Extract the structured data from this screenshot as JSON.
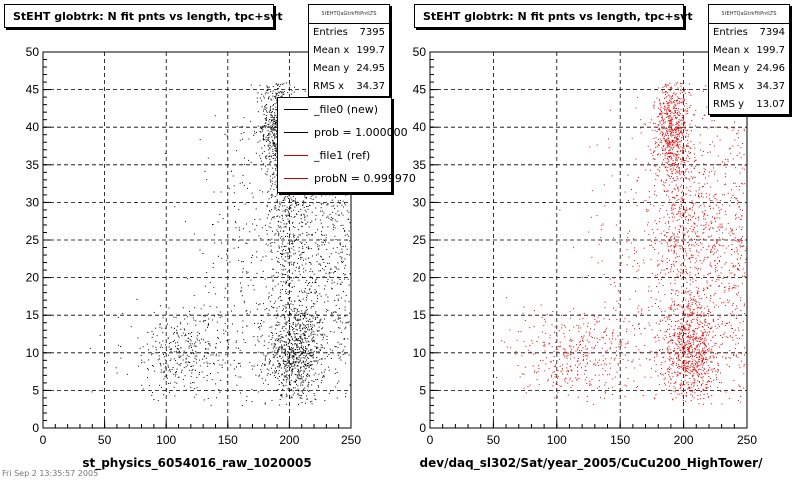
{
  "footer": "Fri Sep  2 13:35:57 2005",
  "panels": [
    {
      "title": "StEHT globtrk: N fit pnts vs length, tpc+svt",
      "xlabel": "st_physics_6054016_raw_1020005",
      "stats": {
        "name": "StEHTQaGtrkFitPntLTS",
        "rows": [
          {
            "label": "Entries",
            "value": "7395"
          },
          {
            "label": "Mean x",
            "value": "199.7"
          },
          {
            "label": "Mean y",
            "value": "24.95"
          },
          {
            "label": "RMS x",
            "value": "34.37"
          }
        ]
      },
      "legend": [
        {
          "label": "_file0 (new)",
          "color": "#000000"
        },
        {
          "label": "prob = 1.000000",
          "color": "#000000"
        },
        {
          "label": "_file1 (ref)",
          "color": "#cc0000"
        },
        {
          "label": "probN = 0.999970",
          "color": "#cc0000"
        }
      ]
    },
    {
      "title": "StEHT globtrk: N fit pnts vs length, tpc+svt",
      "xlabel": "dev/daq_sl302/Sat/year_2005/CuCu200_HighTower/",
      "stats": {
        "name": "StEHTQaGtrkFitPntLTS",
        "rows": [
          {
            "label": "Entries",
            "value": "7394"
          },
          {
            "label": "Mean x",
            "value": "199.7"
          },
          {
            "label": "Mean y",
            "value": "24.96"
          },
          {
            "label": "RMS x",
            "value": "34.37"
          },
          {
            "label": "RMS y",
            "value": "13.07"
          }
        ]
      }
    }
  ],
  "chart_data": [
    {
      "type": "scatter",
      "title": "StEHT globtrk: N fit pnts vs length, tpc+svt",
      "xlabel": "st_physics_6054016_raw_1020005",
      "ylabel": "",
      "xlim": [
        0,
        250
      ],
      "ylim": [
        0,
        50
      ],
      "xticks": [
        0,
        50,
        100,
        150,
        200,
        250
      ],
      "yticks": [
        0,
        5,
        10,
        15,
        20,
        25,
        30,
        35,
        40,
        45,
        50
      ],
      "grid": true,
      "color": "#000000",
      "entries": 7395,
      "density_clusters": [
        {
          "x": 205,
          "y": 10,
          "sx": 12,
          "sy": 3.5,
          "weight": 0.26
        },
        {
          "x": 190,
          "y": 40,
          "sx": 7,
          "sy": 3.5,
          "weight": 0.2
        },
        {
          "x": 218,
          "y": 25,
          "sx": 15,
          "sy": 9,
          "weight": 0.18
        },
        {
          "x": 195,
          "y": 28,
          "sx": 8,
          "sy": 7,
          "weight": 0.1
        },
        {
          "x": 115,
          "y": 10,
          "sx": 25,
          "sy": 3,
          "weight": 0.12
        },
        {
          "x": 165,
          "y": 20,
          "sx": 22,
          "sy": 10,
          "weight": 0.08
        },
        {
          "x": 242,
          "y": 24,
          "sx": 5,
          "sy": 13,
          "weight": 0.06
        }
      ]
    },
    {
      "type": "scatter",
      "title": "StEHT globtrk: N fit pnts vs length, tpc+svt",
      "xlabel": "dev/daq_sl302/Sat/year_2005/CuCu200_HighTower/",
      "ylabel": "",
      "xlim": [
        0,
        250
      ],
      "ylim": [
        0,
        50
      ],
      "xticks": [
        0,
        50,
        100,
        150,
        200,
        250
      ],
      "yticks": [
        0,
        5,
        10,
        15,
        20,
        25,
        30,
        35,
        40,
        45,
        50
      ],
      "grid": true,
      "color": "#dd0000",
      "entries": 7394,
      "density_clusters": [
        {
          "x": 205,
          "y": 10,
          "sx": 12,
          "sy": 3.5,
          "weight": 0.26
        },
        {
          "x": 190,
          "y": 40,
          "sx": 7,
          "sy": 3.5,
          "weight": 0.2
        },
        {
          "x": 218,
          "y": 25,
          "sx": 15,
          "sy": 9,
          "weight": 0.18
        },
        {
          "x": 195,
          "y": 28,
          "sx": 8,
          "sy": 7,
          "weight": 0.1
        },
        {
          "x": 115,
          "y": 10,
          "sx": 25,
          "sy": 3,
          "weight": 0.12
        },
        {
          "x": 165,
          "y": 20,
          "sx": 22,
          "sy": 10,
          "weight": 0.08
        },
        {
          "x": 242,
          "y": 24,
          "sx": 5,
          "sy": 13,
          "weight": 0.06
        }
      ]
    }
  ]
}
